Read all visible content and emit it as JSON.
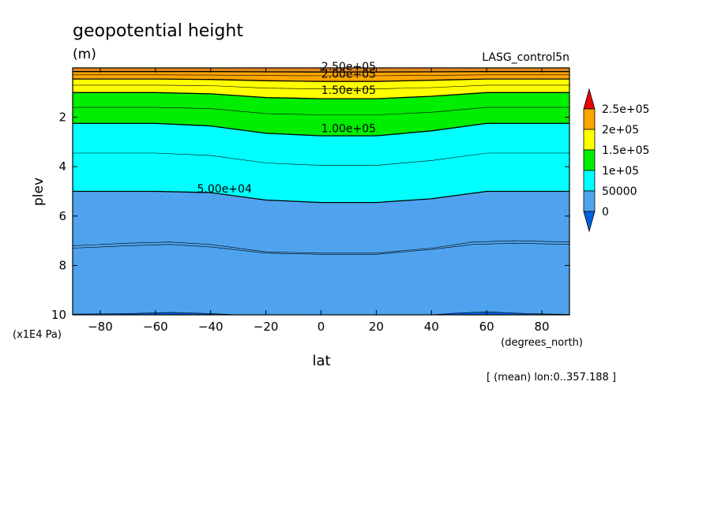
{
  "chart_data": {
    "type": "contour",
    "title": "geopotential height",
    "units": "(m)",
    "dataset": "LASG_control5n",
    "xlabel": "lat",
    "x_units": "(degrees_north)",
    "ylabel": "plev",
    "y_units": "(x1E4 Pa)",
    "subtitle": "[ (mean) lon:0..357.188 ]",
    "xlim": [
      -90,
      90
    ],
    "ylim": [
      10,
      0
    ],
    "x_ticks": [
      -80,
      -60,
      -40,
      -20,
      0,
      20,
      40,
      60,
      80
    ],
    "y_ticks": [
      2,
      4,
      6,
      8,
      10
    ],
    "levels": [
      0,
      50000,
      100000,
      150000,
      200000,
      250000
    ],
    "level_labels": [
      "0",
      "50000",
      "1e+05",
      "1.5e+05",
      "2e+05",
      "2.5e+05"
    ],
    "contour_labels": [
      "2.50e+05",
      "2.00e+05",
      "1.50e+05",
      "1.00e+05",
      "5.00e+04"
    ],
    "colorbar": {
      "colors": [
        "#0060e0",
        "#4fa3ee",
        "#00ffff",
        "#00ee00",
        "#ffff00",
        "#ffa500",
        "#ee0000"
      ],
      "extend": "both"
    },
    "field_colors": {
      "lt50000": "#4fa3ee",
      "50000-100000": "#00ffff",
      "100000-150000": "#00ee00",
      "150000-200000": "#ffff00",
      "200000-250000": "#ffa500"
    },
    "contours": [
      {
        "level": 10000,
        "label": "",
        "points": [
          [
            -90,
            9.97
          ],
          [
            -70,
            9.95
          ],
          [
            -55,
            9.9
          ],
          [
            -40,
            9.95
          ],
          [
            -30,
            10.0
          ]
        ]
      },
      {
        "level": 10000,
        "label": "",
        "points": [
          [
            40,
            10.0
          ],
          [
            50,
            9.92
          ],
          [
            60,
            9.88
          ],
          [
            75,
            9.95
          ],
          [
            90,
            9.98
          ]
        ]
      },
      {
        "level": 20000,
        "label": "",
        "points": [
          [
            -90,
            7.2
          ],
          [
            -70,
            7.1
          ],
          [
            -55,
            7.05
          ],
          [
            -40,
            7.15
          ],
          [
            -20,
            7.45
          ],
          [
            0,
            7.5
          ],
          [
            20,
            7.5
          ],
          [
            40,
            7.3
          ],
          [
            55,
            7.05
          ],
          [
            70,
            7.0
          ],
          [
            90,
            7.05
          ]
        ]
      },
      {
        "level": 25000,
        "label": "",
        "points": [
          [
            -90,
            7.3
          ],
          [
            -70,
            7.2
          ],
          [
            -55,
            7.15
          ],
          [
            -40,
            7.25
          ],
          [
            -20,
            7.5
          ],
          [
            0,
            7.55
          ],
          [
            20,
            7.55
          ],
          [
            40,
            7.35
          ],
          [
            55,
            7.15
          ],
          [
            70,
            7.1
          ],
          [
            90,
            7.15
          ]
        ]
      },
      {
        "level": 50000,
        "label": "5.00e+04",
        "points": [
          [
            -90,
            5.0
          ],
          [
            -60,
            5.0
          ],
          [
            -40,
            5.05
          ],
          [
            -20,
            5.35
          ],
          [
            0,
            5.45
          ],
          [
            20,
            5.45
          ],
          [
            40,
            5.3
          ],
          [
            60,
            5.0
          ],
          [
            90,
            5.0
          ]
        ]
      },
      {
        "level": 75000,
        "label": "",
        "points": [
          [
            -90,
            3.45
          ],
          [
            -60,
            3.45
          ],
          [
            -40,
            3.55
          ],
          [
            -20,
            3.85
          ],
          [
            0,
            3.95
          ],
          [
            20,
            3.95
          ],
          [
            40,
            3.75
          ],
          [
            60,
            3.45
          ],
          [
            90,
            3.45
          ]
        ]
      },
      {
        "level": 100000,
        "label": "1.00e+05",
        "points": [
          [
            -90,
            2.25
          ],
          [
            -60,
            2.25
          ],
          [
            -40,
            2.35
          ],
          [
            -20,
            2.65
          ],
          [
            0,
            2.75
          ],
          [
            20,
            2.75
          ],
          [
            40,
            2.55
          ],
          [
            60,
            2.25
          ],
          [
            90,
            2.25
          ]
        ]
      },
      {
        "level": 125000,
        "label": "",
        "points": [
          [
            -90,
            1.6
          ],
          [
            -60,
            1.6
          ],
          [
            -40,
            1.65
          ],
          [
            -20,
            1.85
          ],
          [
            0,
            1.9
          ],
          [
            20,
            1.9
          ],
          [
            40,
            1.8
          ],
          [
            60,
            1.6
          ],
          [
            90,
            1.6
          ]
        ]
      },
      {
        "level": 150000,
        "label": "1.50e+05",
        "points": [
          [
            -90,
            1.0
          ],
          [
            -60,
            1.0
          ],
          [
            -40,
            1.05
          ],
          [
            -20,
            1.2
          ],
          [
            0,
            1.25
          ],
          [
            20,
            1.25
          ],
          [
            40,
            1.15
          ],
          [
            60,
            1.0
          ],
          [
            90,
            1.0
          ]
        ]
      },
      {
        "level": 175000,
        "label": "",
        "points": [
          [
            -90,
            0.7
          ],
          [
            -60,
            0.7
          ],
          [
            -40,
            0.72
          ],
          [
            -20,
            0.82
          ],
          [
            0,
            0.85
          ],
          [
            20,
            0.85
          ],
          [
            40,
            0.8
          ],
          [
            60,
            0.7
          ],
          [
            90,
            0.7
          ]
        ]
      },
      {
        "level": 200000,
        "label": "2.00e+05",
        "points": [
          [
            -90,
            0.45
          ],
          [
            -60,
            0.45
          ],
          [
            -40,
            0.47
          ],
          [
            -20,
            0.52
          ],
          [
            0,
            0.55
          ],
          [
            20,
            0.55
          ],
          [
            40,
            0.5
          ],
          [
            60,
            0.45
          ],
          [
            90,
            0.45
          ]
        ]
      },
      {
        "level": 225000,
        "label": "",
        "points": [
          [
            -90,
            0.28
          ],
          [
            -60,
            0.28
          ],
          [
            -40,
            0.29
          ],
          [
            -20,
            0.31
          ],
          [
            0,
            0.32
          ],
          [
            20,
            0.32
          ],
          [
            40,
            0.3
          ],
          [
            60,
            0.28
          ],
          [
            90,
            0.28
          ]
        ]
      },
      {
        "level": 250000,
        "label": "2.50e+05",
        "points": [
          [
            -90,
            0.15
          ],
          [
            -60,
            0.15
          ],
          [
            -40,
            0.15
          ],
          [
            -20,
            0.16
          ],
          [
            0,
            0.17
          ],
          [
            20,
            0.17
          ],
          [
            40,
            0.16
          ],
          [
            60,
            0.15
          ],
          [
            90,
            0.15
          ]
        ]
      }
    ]
  }
}
